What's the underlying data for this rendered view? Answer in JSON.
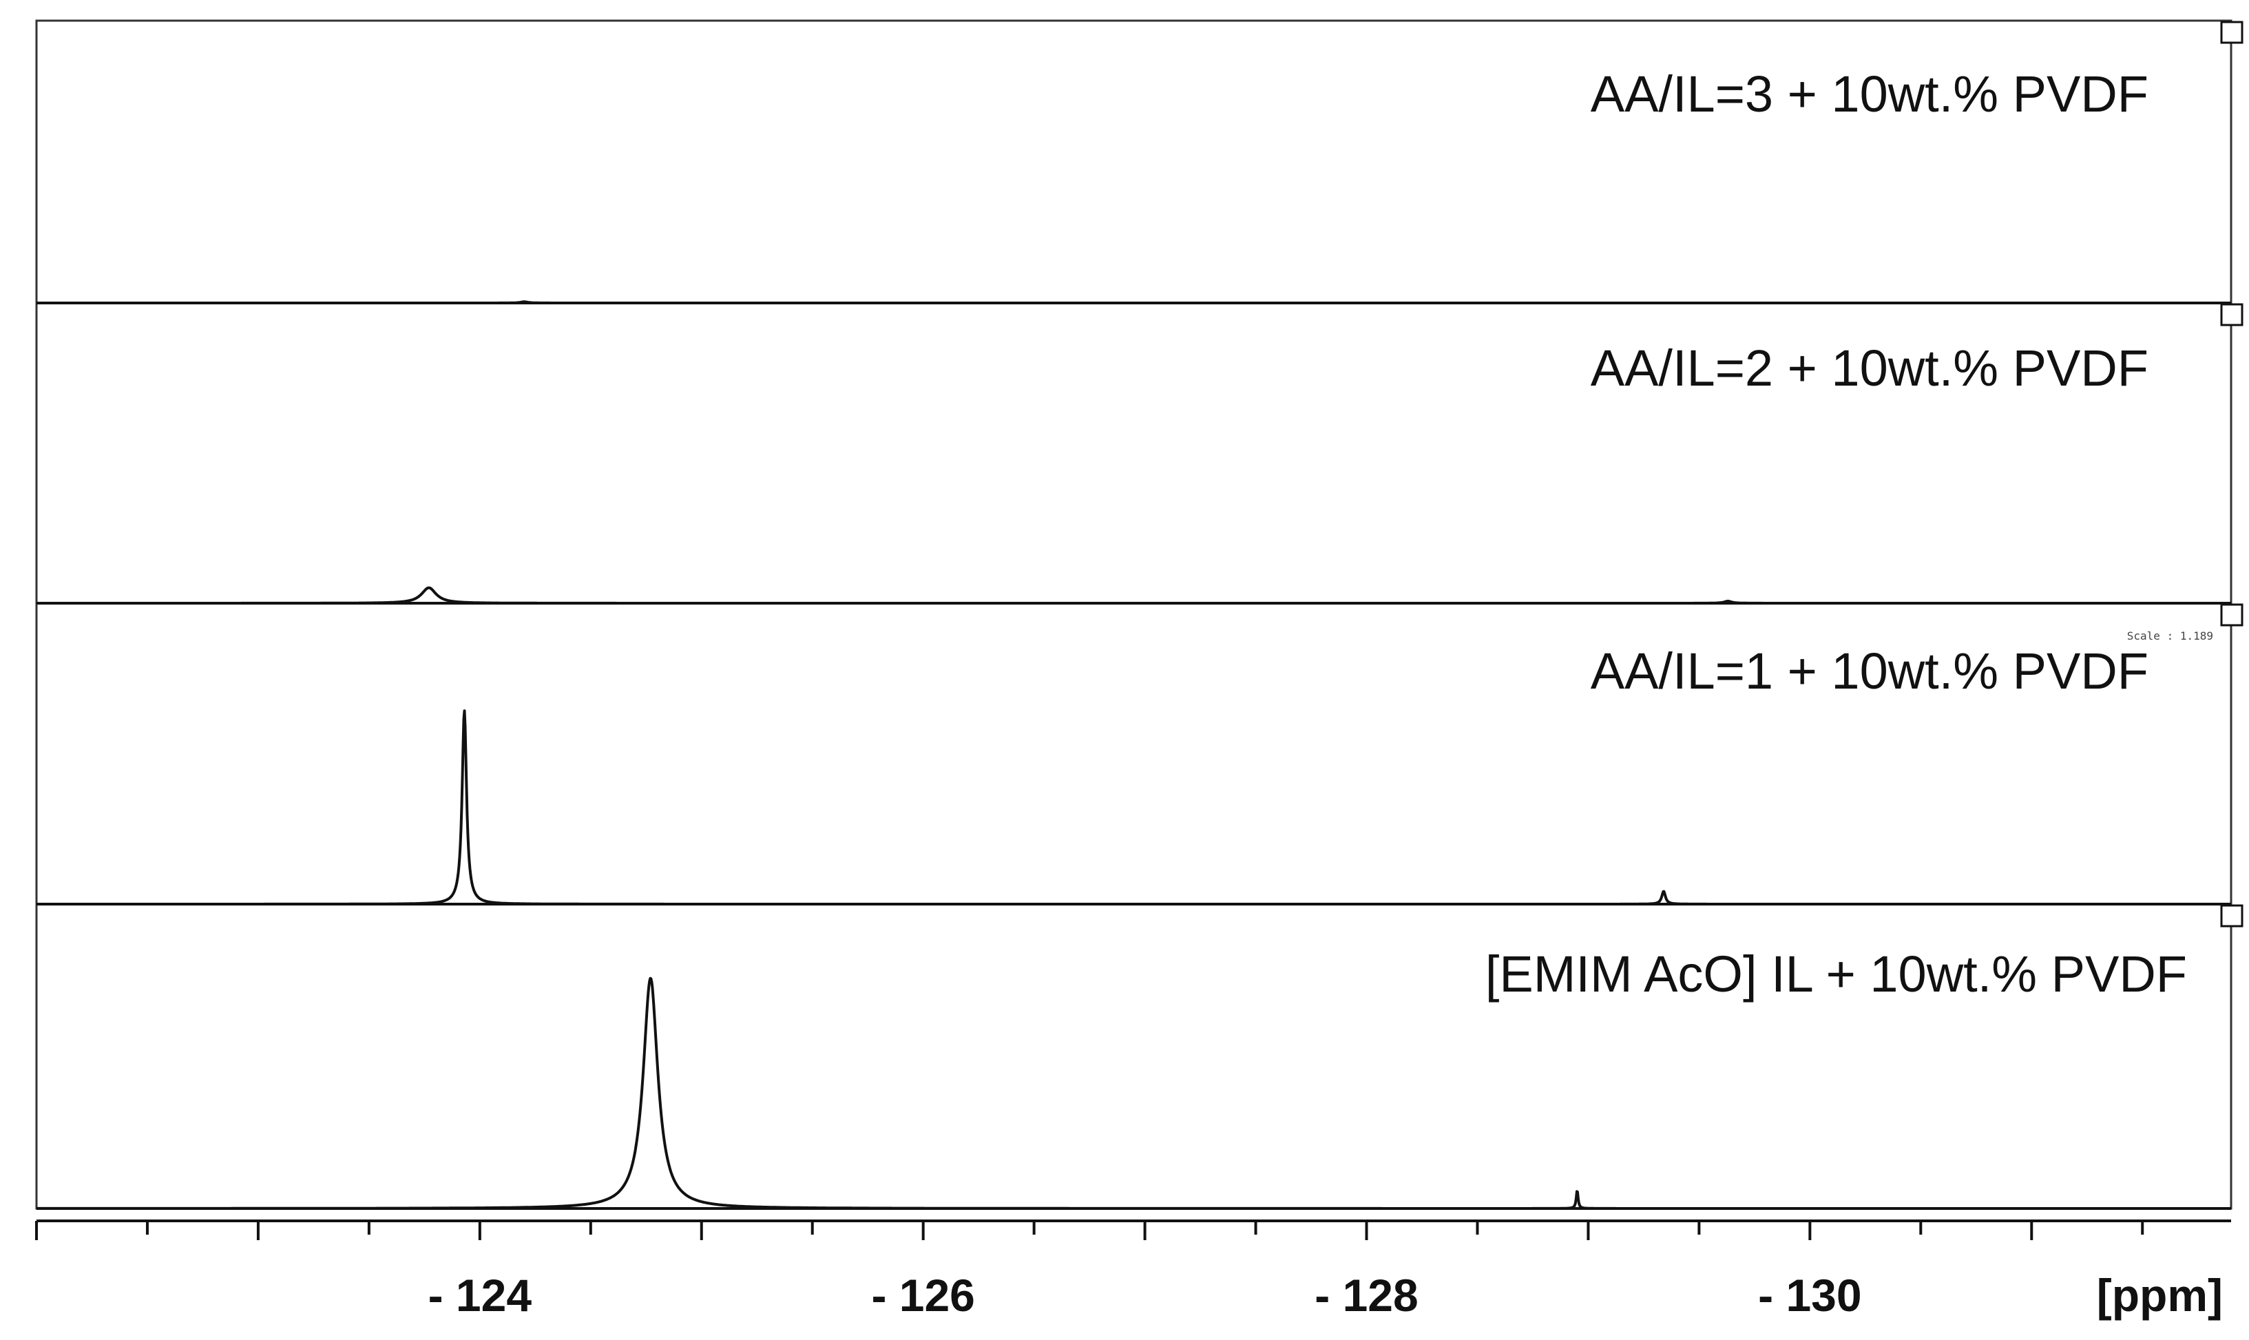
{
  "chart_data": {
    "type": "line",
    "xlabel": "[ppm]",
    "xlim": [
      -122.0,
      -131.9
    ],
    "x_tick_labels": [
      {
        "value": -124,
        "label": "- 124"
      },
      {
        "value": -126,
        "label": "- 126"
      },
      {
        "value": -128,
        "label": "- 128"
      },
      {
        "value": -130,
        "label": "- 130"
      }
    ],
    "minor_tick_step": 0.5,
    "grid": false,
    "legend": "none",
    "scale_note": "Scale : 1.189",
    "panels": [
      {
        "name": "AA/IL=3 +  10wt.% PVDF",
        "peaks": [
          {
            "x": -124.2,
            "height": 0.005,
            "width": 0.02
          }
        ]
      },
      {
        "name": "AA/IL=2 +  10wt.% PVDF",
        "peaks": [
          {
            "x": -123.77,
            "height": 0.06,
            "width": 0.04
          },
          {
            "x": -129.63,
            "height": 0.008,
            "width": 0.02
          }
        ]
      },
      {
        "name": "AA/IL=1 +  10wt.% PVDF",
        "peaks": [
          {
            "x": -123.93,
            "height": 0.75,
            "width": 0.012
          },
          {
            "x": -129.34,
            "height": 0.05,
            "width": 0.01
          }
        ]
      },
      {
        "name": "[EMIM AcO] IL + 10wt.% PVDF",
        "peaks": [
          {
            "x": -124.77,
            "height": 0.88,
            "width": 0.04
          },
          {
            "x": -128.95,
            "height": 0.07,
            "width": 0.005
          }
        ]
      }
    ]
  },
  "colors": {
    "line": "#111111",
    "frame": "#333333",
    "background": "#ffffff"
  }
}
